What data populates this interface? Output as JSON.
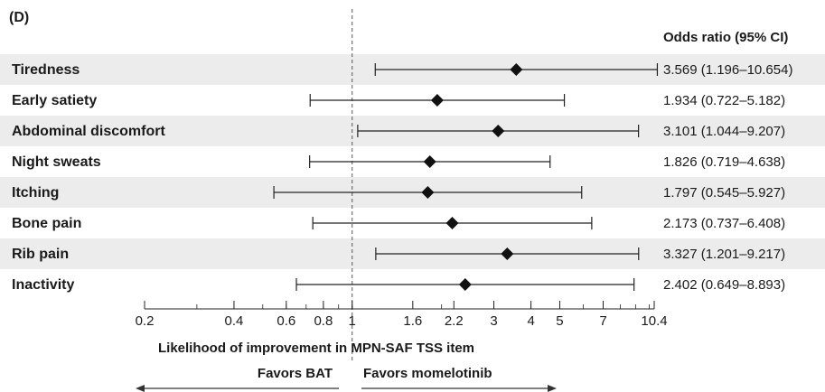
{
  "panel_label": "(D)",
  "ci_header": "Odds ratio (95% CI)",
  "favors_left": "Favors BAT",
  "favors_right": "Favors momelotinib",
  "chart_data": {
    "type": "forest",
    "xlabel": "Likelihood of improvement in MPN-SAF TSS item",
    "xscale": "log",
    "xlim": [
      0.2,
      10.4
    ],
    "reference_line": 1,
    "xticks": [
      0.2,
      0.4,
      0.6,
      0.8,
      1,
      1.6,
      2.2,
      3,
      4,
      5,
      7,
      10.4
    ],
    "xtick_labels": [
      "0.2",
      "0.4",
      "0.6",
      "0.8",
      "1",
      "1.6",
      "2.2",
      "3",
      "4",
      "5",
      "7",
      "10.4"
    ],
    "rows": [
      {
        "label": "Tiredness",
        "or": 3.569,
        "lo": 1.196,
        "hi": 10.654,
        "ci_text": "3.569 (1.196–10.654)"
      },
      {
        "label": "Early satiety",
        "or": 1.934,
        "lo": 0.722,
        "hi": 5.182,
        "ci_text": "1.934 (0.722–5.182)"
      },
      {
        "label": "Abdominal discomfort",
        "or": 3.101,
        "lo": 1.044,
        "hi": 9.207,
        "ci_text": "3.101 (1.044–9.207)"
      },
      {
        "label": "Night sweats",
        "or": 1.826,
        "lo": 0.719,
        "hi": 4.638,
        "ci_text": "1.826 (0.719–4.638)"
      },
      {
        "label": "Itching",
        "or": 1.797,
        "lo": 0.545,
        "hi": 5.927,
        "ci_text": "1.797 (0.545–5.927)"
      },
      {
        "label": "Bone pain",
        "or": 2.173,
        "lo": 0.737,
        "hi": 6.408,
        "ci_text": "2.173 (0.737–6.408)"
      },
      {
        "label": "Rib pain",
        "or": 3.327,
        "lo": 1.201,
        "hi": 9.217,
        "ci_text": "3.327 (1.201–9.217)"
      },
      {
        "label": "Inactivity",
        "or": 2.402,
        "lo": 0.649,
        "hi": 8.893,
        "ci_text": "2.402 (0.649–8.893)"
      }
    ]
  }
}
